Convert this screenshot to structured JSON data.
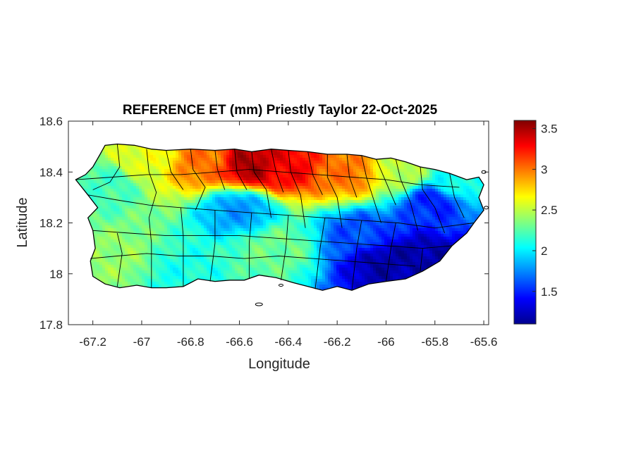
{
  "chart_data": {
    "type": "heatmap",
    "title": "REFERENCE ET (mm) Priestly Taylor 22-Oct-2025",
    "xlabel": "Longitude",
    "ylabel": "Latitude",
    "xlim": [
      -67.3,
      -65.58
    ],
    "ylim": [
      17.8,
      18.6
    ],
    "xticks": [
      -67.2,
      -67,
      -66.8,
      -66.6,
      -66.4,
      -66.2,
      -66,
      -65.8,
      -65.6
    ],
    "xtick_labels": [
      "-67.2",
      "-67",
      "-66.8",
      "-66.6",
      "-66.4",
      "-66.2",
      "-66",
      "-65.8",
      "-65.6"
    ],
    "yticks": [
      17.8,
      18,
      18.2,
      18.4,
      18.6
    ],
    "ytick_labels": [
      "17.8",
      "18",
      "18.2",
      "18.4",
      "18.6"
    ],
    "colorbar": {
      "colormap": "jet",
      "clim": [
        1.1,
        3.6
      ],
      "ticks": [
        1.5,
        2,
        2.5,
        3,
        3.5
      ],
      "tick_labels": [
        "1.5",
        "2",
        "2.5",
        "3",
        "3.5"
      ]
    },
    "grid": false,
    "field_estimates": [
      {
        "lon": -66.55,
        "lat": 18.43,
        "value": 3.5
      },
      {
        "lon": -66.42,
        "lat": 18.42,
        "value": 3.3
      },
      {
        "lon": -66.75,
        "lat": 18.44,
        "value": 3.0
      },
      {
        "lon": -66.15,
        "lat": 18.4,
        "value": 3.0
      },
      {
        "lon": -66.98,
        "lat": 18.45,
        "value": 2.6
      },
      {
        "lon": -67.15,
        "lat": 18.35,
        "value": 2.2
      },
      {
        "lon": -67.1,
        "lat": 18.05,
        "value": 2.4
      },
      {
        "lon": -66.45,
        "lat": 18.1,
        "value": 2.3
      },
      {
        "lon": -66.6,
        "lat": 18.25,
        "value": 1.8
      },
      {
        "lon": -66.0,
        "lat": 18.05,
        "value": 1.2
      },
      {
        "lon": -65.85,
        "lat": 18.05,
        "value": 1.2
      },
      {
        "lon": -65.8,
        "lat": 18.28,
        "value": 1.5
      },
      {
        "lon": -66.1,
        "lat": 18.15,
        "value": 1.6
      },
      {
        "lon": -65.7,
        "lat": 18.35,
        "value": 2.1
      },
      {
        "lon": -65.95,
        "lat": 18.4,
        "value": 2.5
      },
      {
        "lon": -66.85,
        "lat": 18.0,
        "value": 2.1
      }
    ]
  }
}
